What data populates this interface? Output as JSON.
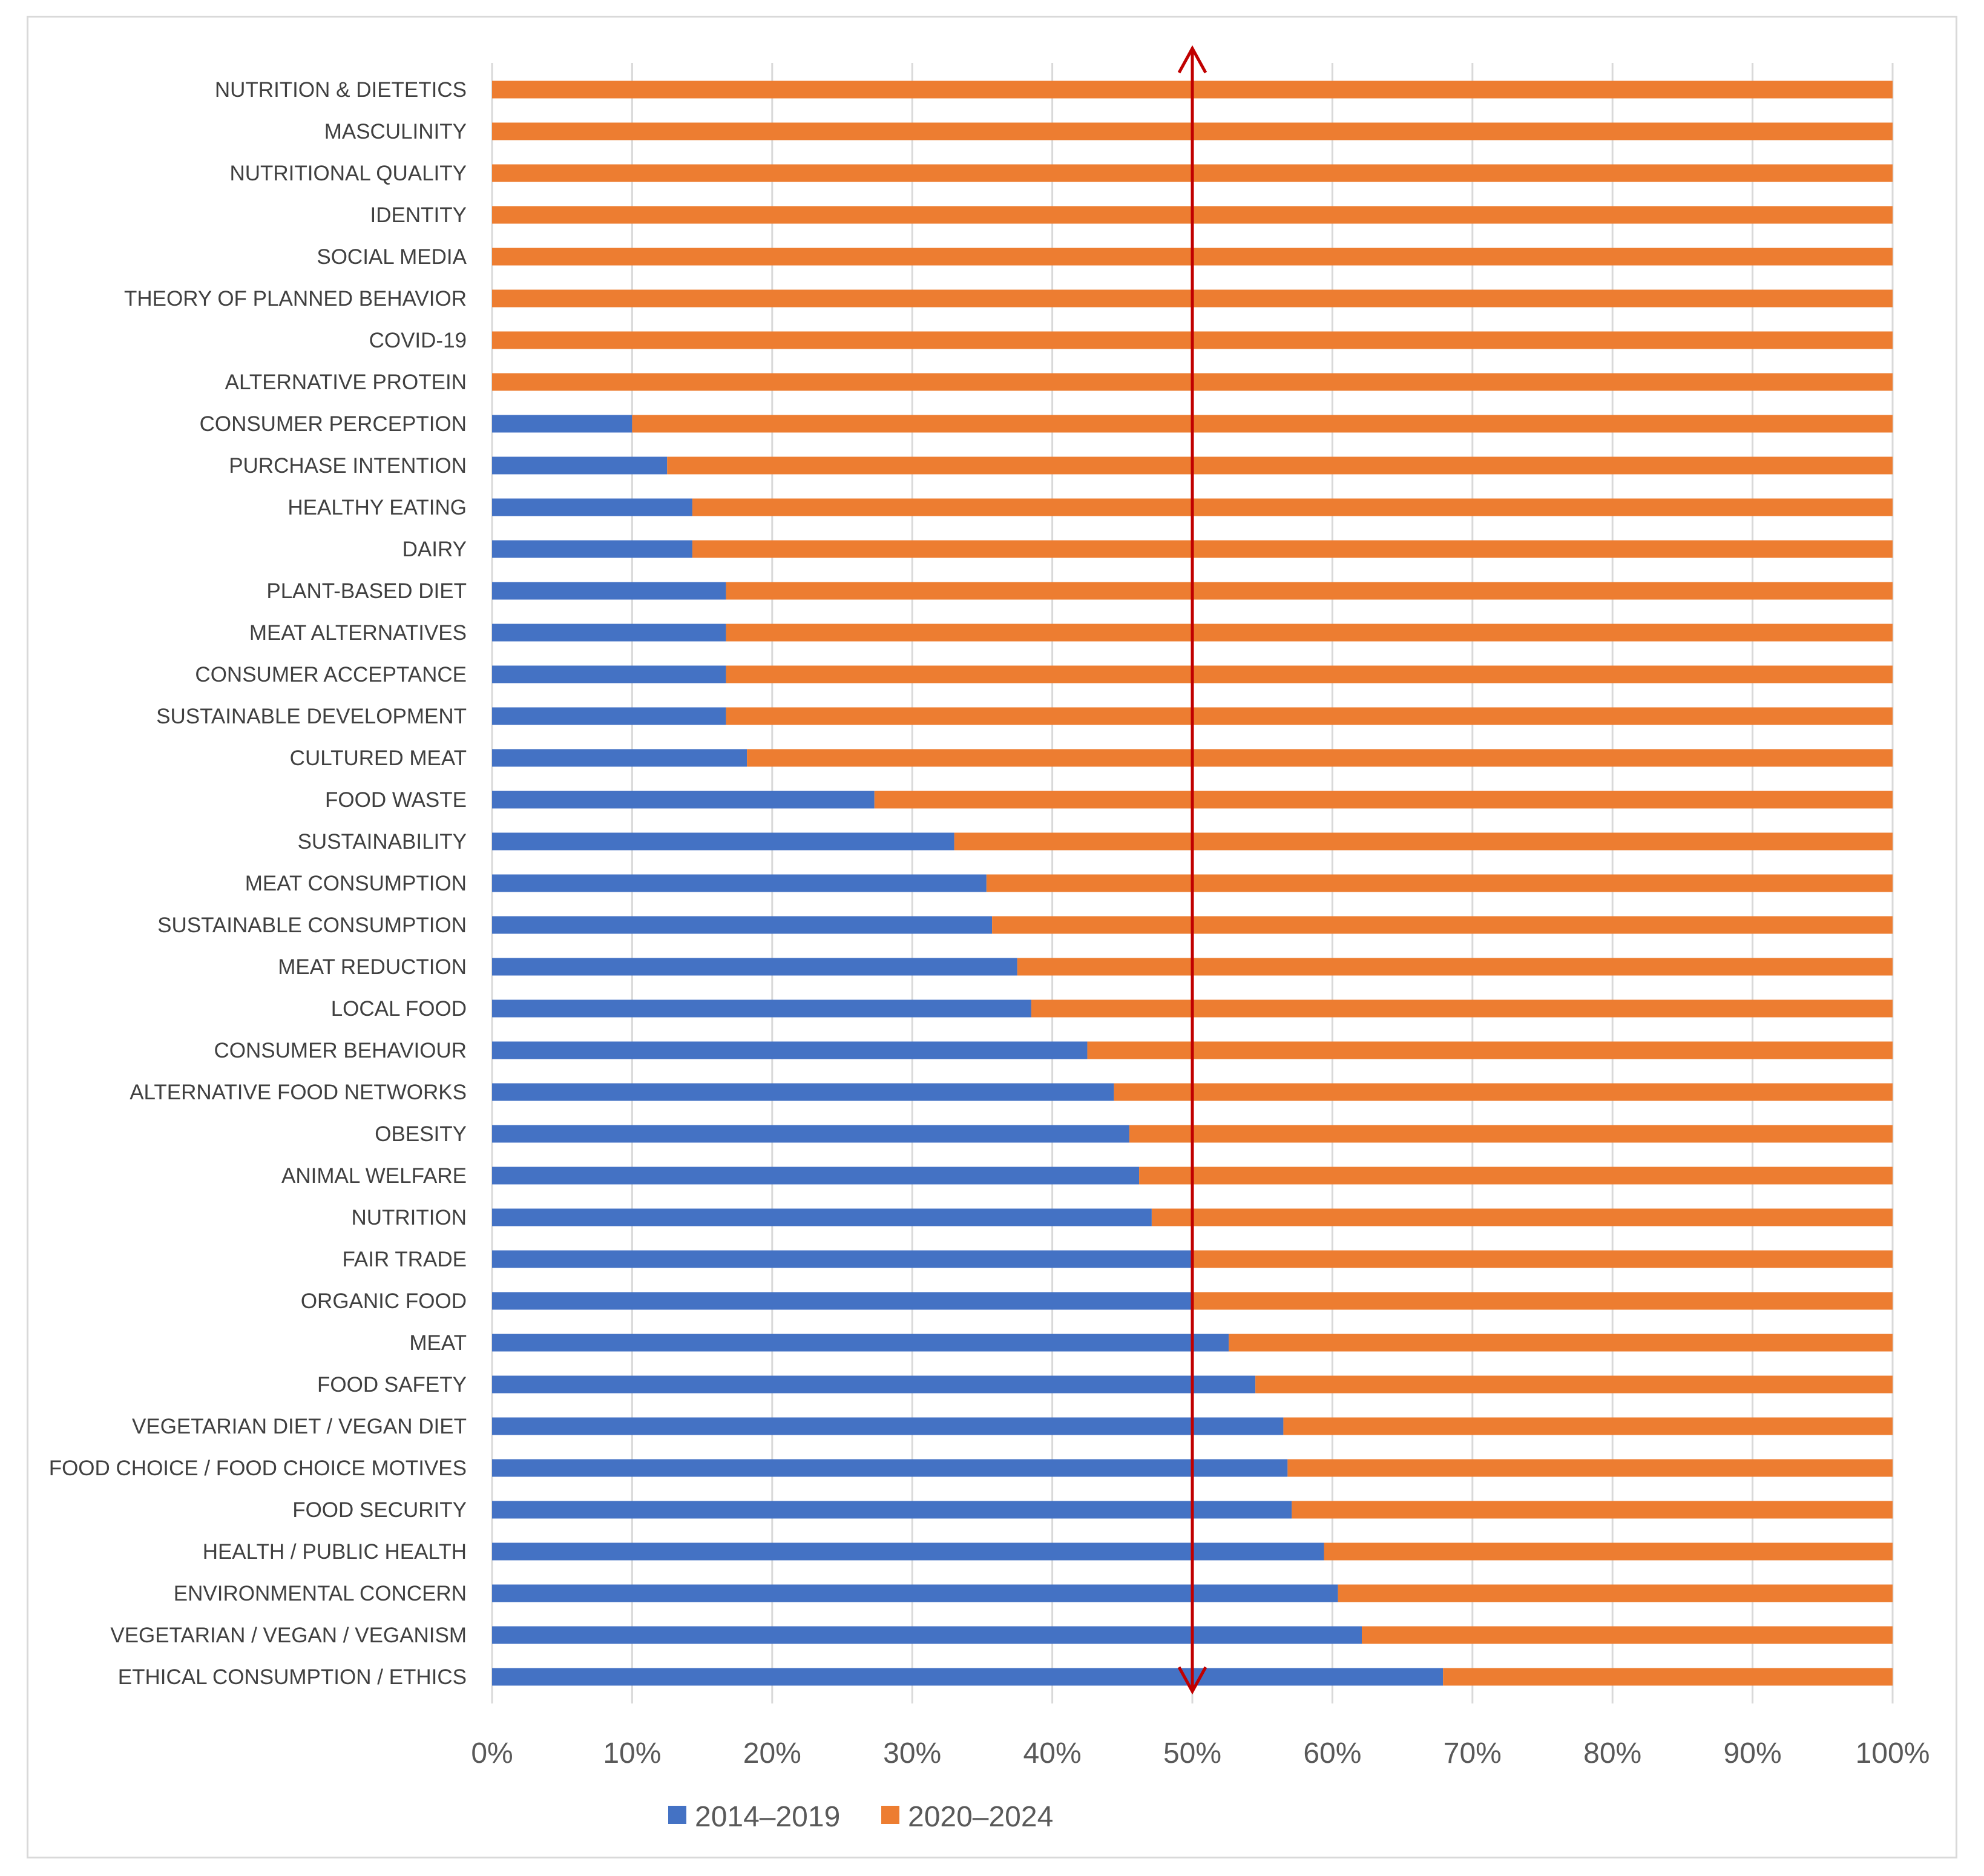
{
  "chart_data": {
    "type": "bar",
    "orientation": "horizontal",
    "stacked": "100%",
    "title": "",
    "xlabel": "",
    "ylabel": "",
    "xlim": [
      0,
      100
    ],
    "x_ticks": [
      "0%",
      "10%",
      "20%",
      "30%",
      "40%",
      "50%",
      "60%",
      "70%",
      "80%",
      "90%",
      "100%"
    ],
    "categories": [
      "NUTRITION & DIETETICS",
      "MASCULINITY",
      "NUTRITIONAL QUALITY",
      "IDENTITY",
      "SOCIAL MEDIA",
      "THEORY OF PLANNED BEHAVIOR",
      "COVID-19",
      "ALTERNATIVE PROTEIN",
      "CONSUMER PERCEPTION",
      "PURCHASE INTENTION",
      "HEALTHY EATING",
      "DAIRY",
      "PLANT-BASED DIET",
      "MEAT ALTERNATIVES",
      "CONSUMER ACCEPTANCE",
      "SUSTAINABLE DEVELOPMENT",
      "CULTURED MEAT",
      "FOOD WASTE",
      "SUSTAINABILITY",
      "MEAT CONSUMPTION",
      "SUSTAINABLE CONSUMPTION",
      "MEAT REDUCTION",
      "LOCAL FOOD",
      "CONSUMER BEHAVIOUR",
      "ALTERNATIVE FOOD NETWORKS",
      "OBESITY",
      "ANIMAL WELFARE",
      "NUTRITION",
      "FAIR TRADE",
      "ORGANIC FOOD",
      "MEAT",
      "FOOD SAFETY",
      "VEGETARIAN DIET / VEGAN DIET",
      "FOOD CHOICE / FOOD CHOICE MOTIVES",
      "FOOD SECURITY",
      "HEALTH / PUBLIC HEALTH",
      "ENVIRONMENTAL CONCERN",
      "VEGETARIAN / VEGAN / VEGANISM",
      "ETHICAL CONSUMPTION / ETHICS"
    ],
    "series": [
      {
        "name": "2014–2019",
        "color": "#4472c4",
        "values": [
          0,
          0,
          0,
          0,
          0,
          0,
          0,
          0,
          10,
          12.5,
          14.3,
          14.3,
          16.7,
          16.7,
          16.7,
          16.7,
          18.2,
          27.3,
          33,
          35.3,
          35.7,
          37.5,
          38.5,
          42.5,
          44.4,
          45.5,
          46.2,
          47.1,
          50,
          50,
          52.6,
          54.5,
          56.5,
          56.8,
          57.1,
          59.4,
          60.4,
          62.1,
          67.9
        ]
      },
      {
        "name": "2020–2024",
        "color": "#ed7d31",
        "values": [
          100,
          100,
          100,
          100,
          100,
          100,
          100,
          100,
          90,
          87.5,
          85.7,
          85.7,
          83.3,
          83.3,
          83.3,
          83.3,
          81.8,
          72.7,
          67,
          64.7,
          64.3,
          62.5,
          61.5,
          57.5,
          55.6,
          54.5,
          53.8,
          52.9,
          50,
          50,
          47.4,
          45.5,
          43.5,
          43.2,
          42.9,
          40.6,
          39.6,
          37.9,
          32.1
        ]
      }
    ],
    "reference_line": {
      "x": 50,
      "color": "#c00000",
      "style": "double-arrow"
    },
    "gridlines": "vertical",
    "legend": {
      "position": "bottom"
    }
  }
}
